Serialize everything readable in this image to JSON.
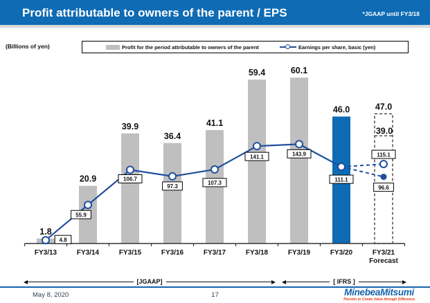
{
  "header": {
    "title": "Profit attributable to owners of the parent / EPS",
    "note": "*JGAAP until FY3/18"
  },
  "unit_label": "(Billions of yen)",
  "legend": {
    "bar_label": "Profit for the period attributable to owners of the parent",
    "line_label": "Earnings per share, basic (yen)"
  },
  "chart_data": {
    "type": "bar+line",
    "title": "Profit attributable to owners of the parent / EPS",
    "categories": [
      "FY3/13",
      "FY3/14",
      "FY3/15",
      "FY3/16",
      "FY3/17",
      "FY3/18",
      "FY3/19",
      "FY3/20",
      "FY3/21 Forecast"
    ],
    "series": [
      {
        "name": "Profit for the period attributable to owners of the parent",
        "type": "bar",
        "unit": "billions of yen",
        "values": [
          1.8,
          20.9,
          39.9,
          36.4,
          41.1,
          59.4,
          60.1,
          46.0
        ],
        "highlight_category": "FY3/20",
        "forecast": {
          "category": "FY3/21 Forecast",
          "high": 47.0,
          "low": 39.0
        }
      },
      {
        "name": "Earnings per share, basic (yen)",
        "type": "line",
        "unit": "yen",
        "values": [
          4.8,
          55.9,
          106.7,
          97.3,
          107.3,
          141.1,
          143.9,
          111.1
        ],
        "forecast": {
          "category": "FY3/21 Forecast",
          "high": 115.1,
          "low": 96.6
        }
      }
    ],
    "ylim_bar": [
      0,
      65
    ],
    "grid": false,
    "legend_position": "top"
  },
  "era_annotations": {
    "jgaap": "[JGAAP]",
    "ifrs": "[ IFRS ]"
  },
  "footer": {
    "date": "May 8, 2020",
    "page_number": "17",
    "logo_text": "MinebeaMitsumi",
    "logo_tagline": "Passion to Create Value through Difference"
  },
  "colors": {
    "header_bg": "#0E6BB4",
    "bar_gray": "#BFBFBF",
    "bar_highlight": "#0E6BB4",
    "line_navy": "#1F4E9C",
    "axis": "#333333",
    "footer_line": "#1464AC",
    "logo_blue": "#1464AC",
    "tagline_red": "#E8380D"
  }
}
